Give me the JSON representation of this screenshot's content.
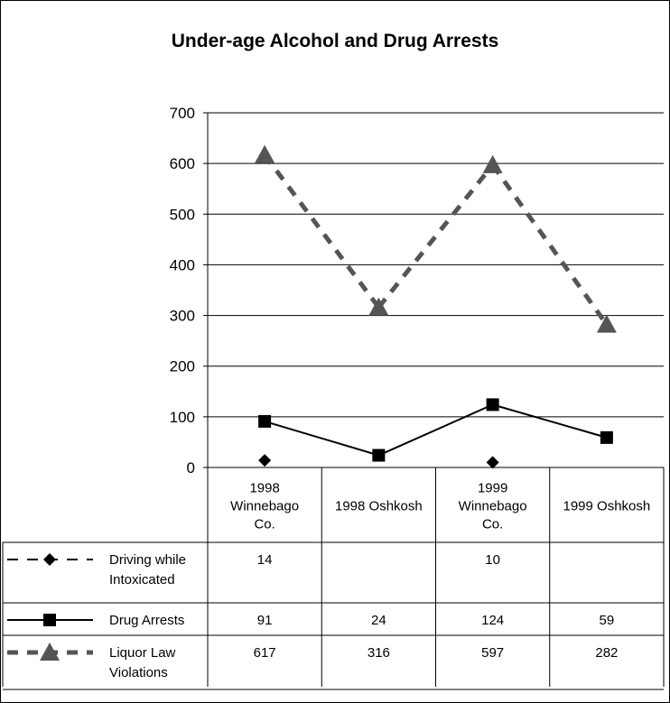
{
  "chart_data": {
    "type": "line",
    "title": "Under-age Alcohol and Drug Arrests",
    "categories": [
      [
        "1998",
        "Winnebago",
        "Co."
      ],
      [
        "1998  Oshkosh"
      ],
      [
        "1999",
        "Winnebago",
        "Co."
      ],
      [
        "1999  Oshkosh"
      ]
    ],
    "ylim": [
      0,
      700
    ],
    "yticks": [
      0,
      100,
      200,
      300,
      400,
      500,
      600,
      700
    ],
    "grid": true,
    "legend": "data table below plot",
    "series": [
      {
        "name": "Driving while Intoxicated",
        "name_lines": [
          "Driving while",
          "Intoxicated"
        ],
        "values": [
          14,
          null,
          10,
          null
        ],
        "color": "#000000",
        "marker": "diamond",
        "line": "dashed"
      },
      {
        "name": "Drug Arrests",
        "name_lines": [
          "Drug Arrests"
        ],
        "values": [
          91,
          24,
          124,
          59
        ],
        "color": "#000000",
        "marker": "square",
        "line": "solid"
      },
      {
        "name": "Liquor Law Violations",
        "name_lines": [
          "Liquor Law",
          "Violations"
        ],
        "values": [
          617,
          316,
          597,
          282
        ],
        "color": "#555555",
        "marker": "triangle",
        "line": "dashed"
      }
    ]
  }
}
